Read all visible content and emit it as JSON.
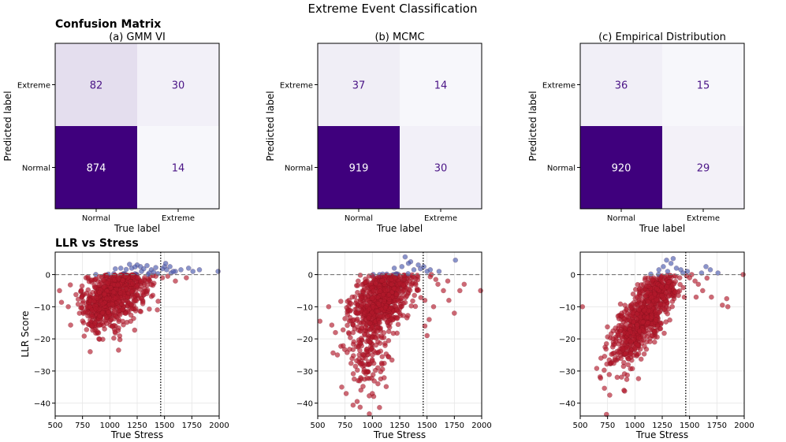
{
  "figure": {
    "suptitle": "Extreme Event Classification",
    "row1_heading": "Confusion Matrix",
    "row2_heading": "LLR vs Stress"
  },
  "colors": {
    "cm_low": "#f7f7fb",
    "cm_high": "#3f007d",
    "text_dark": "#4a1486",
    "text_light": "#ffffff",
    "predicted_normal": "#b2182b",
    "predicted_extreme": "#4a5aad",
    "threshold_line": "#000000",
    "zero_line": "#777777",
    "grid": "#e6e6e6"
  },
  "chart_data": [
    {
      "type": "heatmap",
      "title": "(a) GMM VI",
      "xlabel": "True label",
      "ylabel": "Predicted label",
      "x_categories": [
        "Normal",
        "Extreme"
      ],
      "y_categories": [
        "Extreme",
        "Normal"
      ],
      "matrix": [
        [
          82,
          30
        ],
        [
          874,
          14
        ]
      ],
      "colormap": "Purples"
    },
    {
      "type": "heatmap",
      "title": "(b) MCMC",
      "xlabel": "True label",
      "ylabel": "Predicted label",
      "x_categories": [
        "Normal",
        "Extreme"
      ],
      "y_categories": [
        "Extreme",
        "Normal"
      ],
      "matrix": [
        [
          37,
          14
        ],
        [
          919,
          30
        ]
      ],
      "colormap": "Purples"
    },
    {
      "type": "heatmap",
      "title": "(c) Empirical Distribution",
      "xlabel": "True label",
      "ylabel": "Predicted label",
      "x_categories": [
        "Normal",
        "Extreme"
      ],
      "y_categories": [
        "Extreme",
        "Normal"
      ],
      "matrix": [
        [
          36,
          15
        ],
        [
          920,
          29
        ]
      ],
      "colormap": "Purples"
    },
    {
      "type": "scatter",
      "xlabel": "True Stress",
      "ylabel": "LLR Score",
      "xlim": [
        500,
        2000
      ],
      "ylim": [
        -44,
        7
      ],
      "xticks": [
        500,
        750,
        1000,
        1250,
        1500,
        1750,
        2000
      ],
      "yticks": [
        0,
        -10,
        -20,
        -30,
        -40
      ],
      "grid": true,
      "threshold_x": 1465,
      "threshold_y": 0,
      "clusters": [
        {
          "cx": 1030,
          "cy": -6,
          "sx": 135,
          "sy": 5,
          "n": 560,
          "cov": 0.25
        },
        {
          "cx": 870,
          "cy": -11,
          "sx": 75,
          "sy": 4.5,
          "n": 110,
          "cov": 0.1
        },
        {
          "cx": 1150,
          "cy": -3,
          "sx": 130,
          "sy": 3,
          "n": 180,
          "cov": 0.1
        }
      ],
      "extras": [
        {
          "x": 1280,
          "y": 2.5
        },
        {
          "x": 1200,
          "y": 2.0
        },
        {
          "x": 1310,
          "y": 1.8
        },
        {
          "x": 1250,
          "y": 3.0
        },
        {
          "x": 1380,
          "y": 1.5
        },
        {
          "x": 1420,
          "y": 2.2
        },
        {
          "x": 1340,
          "y": 2.8
        },
        {
          "x": 1150,
          "y": 1.6
        },
        {
          "x": 1100,
          "y": 2.0
        },
        {
          "x": 1050,
          "y": 1.8
        },
        {
          "x": 1230,
          "y": 2.4
        },
        {
          "x": 1180,
          "y": 3.2
        },
        {
          "x": 1400,
          "y": 0.8
        },
        {
          "x": 1360,
          "y": 0.5
        },
        {
          "x": 1440,
          "y": 0.3
        },
        {
          "x": 1290,
          "y": 1.0
        },
        {
          "x": 1480,
          "y": 1.8
        },
        {
          "x": 1500,
          "y": 2.5
        },
        {
          "x": 1520,
          "y": 1.5
        },
        {
          "x": 1550,
          "y": 2.5
        },
        {
          "x": 1560,
          "y": 0.5
        },
        {
          "x": 1600,
          "y": 1.0
        },
        {
          "x": 1650,
          "y": 1.5
        },
        {
          "x": 1700,
          "y": -1.0
        },
        {
          "x": 1720,
          "y": 2.0
        },
        {
          "x": 1820,
          "y": 1.5
        },
        {
          "x": 1480,
          "y": -1.0
        },
        {
          "x": 1600,
          "y": -2.0
        },
        {
          "x": 1990,
          "y": 1.0
        },
        {
          "x": 1510,
          "y": 3.5
        },
        {
          "x": 1760,
          "y": 1.0
        },
        {
          "x": 1530,
          "y": -0.5
        },
        {
          "x": 540,
          "y": -5
        },
        {
          "x": 620,
          "y": -10
        },
        {
          "x": 760,
          "y": -15
        },
        {
          "x": 820,
          "y": -24
        },
        {
          "x": 1080,
          "y": -23.5
        },
        {
          "x": 900,
          "y": -20
        },
        {
          "x": 1420,
          "y": -0.5
        },
        {
          "x": 1580,
          "y": 1.0
        }
      ]
    },
    {
      "type": "scatter",
      "xlabel": "True Stress",
      "ylabel": "",
      "xlim": [
        500,
        2000
      ],
      "ylim": [
        -44,
        7
      ],
      "xticks": [
        500,
        750,
        1000,
        1250,
        1500,
        1750,
        2000
      ],
      "yticks": [
        0,
        -10,
        -20,
        -30,
        -40
      ],
      "grid": true,
      "threshold_x": 1465,
      "threshold_y": 0,
      "clusters": [
        {
          "cx": 1060,
          "cy": -8,
          "sx": 130,
          "sy": 5,
          "n": 620,
          "cov": 0.35
        },
        {
          "cx": 960,
          "cy": -22,
          "sx": 100,
          "sy": 8,
          "n": 180,
          "cov": 0.2
        },
        {
          "cx": 1250,
          "cy": -2,
          "sx": 110,
          "sy": 3,
          "n": 140,
          "cov": 0.1
        }
      ],
      "extras": [
        {
          "x": 1300,
          "y": 5.5
        },
        {
          "x": 1350,
          "y": 4.0
        },
        {
          "x": 1420,
          "y": 3.0
        },
        {
          "x": 1270,
          "y": 2.5
        },
        {
          "x": 1200,
          "y": 2.0
        },
        {
          "x": 1380,
          "y": 1.5
        },
        {
          "x": 1440,
          "y": 1.8
        },
        {
          "x": 1330,
          "y": 3.5
        },
        {
          "x": 1500,
          "y": 1.0
        },
        {
          "x": 1540,
          "y": 0.0
        },
        {
          "x": 1580,
          "y": -1.5
        },
        {
          "x": 1600,
          "y": -3.0
        },
        {
          "x": 1650,
          "y": -5.0
        },
        {
          "x": 1700,
          "y": -8.0
        },
        {
          "x": 1750,
          "y": -12.0
        },
        {
          "x": 1800,
          "y": -5.0
        },
        {
          "x": 1840,
          "y": -3.0
        },
        {
          "x": 1990,
          "y": -5.0
        },
        {
          "x": 1480,
          "y": -16.0
        },
        {
          "x": 1500,
          "y": -19.0
        },
        {
          "x": 1520,
          "y": -14.0
        },
        {
          "x": 1760,
          "y": 4.5
        },
        {
          "x": 1480,
          "y": -8.0
        },
        {
          "x": 1560,
          "y": -10.0
        },
        {
          "x": 1610,
          "y": 1.0
        },
        {
          "x": 1690,
          "y": -2.0
        },
        {
          "x": 1470,
          "y": 2.5
        },
        {
          "x": 1530,
          "y": 1.5
        },
        {
          "x": 520,
          "y": -14.5
        },
        {
          "x": 600,
          "y": -10
        },
        {
          "x": 720,
          "y": -35
        },
        {
          "x": 760,
          "y": -37
        },
        {
          "x": 870,
          "y": -33
        },
        {
          "x": 1000,
          "y": -37
        },
        {
          "x": 1050,
          "y": -29
        },
        {
          "x": 680,
          "y": -25
        }
      ]
    },
    {
      "type": "scatter",
      "xlabel": "True Stress",
      "ylabel": "",
      "xlim": [
        500,
        2000
      ],
      "ylim": [
        -44,
        7
      ],
      "xticks": [
        500,
        750,
        1000,
        1250,
        1500,
        1750,
        2000
      ],
      "yticks": [
        0,
        -10,
        -20,
        -30,
        -40
      ],
      "grid": true,
      "threshold_x": 1465,
      "threshold_y": 0,
      "clusters": [
        {
          "cx": 1050,
          "cy": -15,
          "sx": 140,
          "sy": 7,
          "n": 700,
          "cov": 0.72
        },
        {
          "cx": 1250,
          "cy": -4,
          "sx": 100,
          "sy": 3.5,
          "n": 150,
          "cov": 0.3
        }
      ],
      "extras": [
        {
          "x": 1290,
          "y": 4.5
        },
        {
          "x": 1330,
          "y": 3.5
        },
        {
          "x": 1260,
          "y": 2.5
        },
        {
          "x": 1380,
          "y": 2.0
        },
        {
          "x": 1420,
          "y": 1.5
        },
        {
          "x": 1220,
          "y": 1.5
        },
        {
          "x": 1350,
          "y": 5.0
        },
        {
          "x": 1300,
          "y": 1.0
        },
        {
          "x": 1480,
          "y": 1.0
        },
        {
          "x": 1520,
          "y": 0.0
        },
        {
          "x": 1550,
          "y": -2.0
        },
        {
          "x": 1580,
          "y": -3.0
        },
        {
          "x": 1620,
          "y": -5.0
        },
        {
          "x": 1700,
          "y": -7.0
        },
        {
          "x": 1800,
          "y": -9.5
        },
        {
          "x": 1840,
          "y": -7.5
        },
        {
          "x": 1850,
          "y": -10.0
        },
        {
          "x": 1990,
          "y": 0.0
        },
        {
          "x": 1650,
          "y": 2.5
        },
        {
          "x": 1690,
          "y": 1.5
        },
        {
          "x": 1760,
          "y": 0.5
        },
        {
          "x": 1500,
          "y": -1.0
        },
        {
          "x": 1560,
          "y": -7.0
        },
        {
          "x": 1610,
          "y": 0.5
        },
        {
          "x": 520,
          "y": -10
        },
        {
          "x": 740,
          "y": -43.5
        },
        {
          "x": 770,
          "y": -37.5
        },
        {
          "x": 690,
          "y": -26
        },
        {
          "x": 900,
          "y": -36
        },
        {
          "x": 1410,
          "y": -1.0
        },
        {
          "x": 1440,
          "y": 0.5
        }
      ]
    }
  ]
}
